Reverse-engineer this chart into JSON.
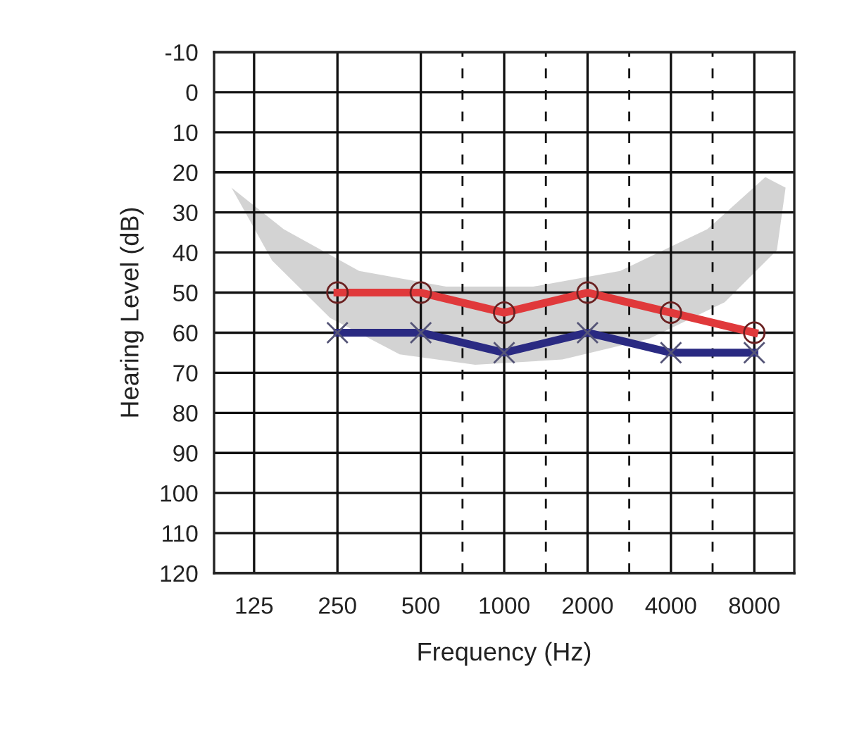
{
  "chart_data": {
    "type": "line",
    "xlabel": "Frequency (Hz)",
    "ylabel": "Hearing Level (dB)",
    "categories": [
      "125",
      "250",
      "500",
      "1000",
      "2000",
      "4000",
      "8000"
    ],
    "series": [
      {
        "color": "#e0393b",
        "marker": "circle",
        "values": [
          null,
          50,
          50,
          55,
          50,
          55,
          60
        ]
      },
      {
        "color": "#2a2a82",
        "marker": "cross",
        "values": [
          null,
          60,
          60,
          65,
          60,
          65,
          65
        ]
      }
    ],
    "ylim": [
      120,
      -10
    ],
    "yticks": [
      -10,
      0,
      10,
      20,
      30,
      40,
      50,
      60,
      70,
      80,
      90,
      100,
      110,
      120
    ],
    "grid": true,
    "line_style": "solid"
  }
}
